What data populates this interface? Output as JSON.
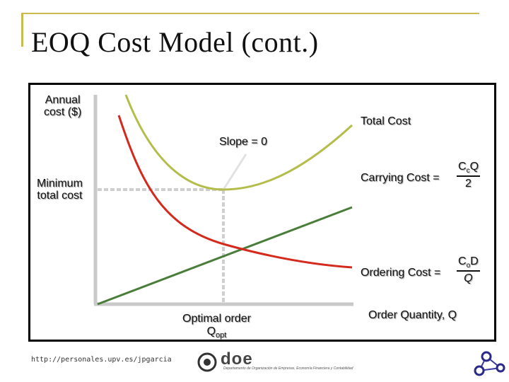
{
  "slide": {
    "title": "EOQ Cost Model (cont.)",
    "url": "http://personales.upv.es/jpgarcia"
  },
  "diagram": {
    "y_axis_label_line1": "Annual",
    "y_axis_label_line2": "cost ($)",
    "x_axis_label": "Order Quantity, Q",
    "total_cost_label": "Total Cost",
    "slope_label": "Slope = 0",
    "minimum_label_line1": "Minimum",
    "minimum_label_line2": "total cost",
    "carrying_cost_label": "Carrying Cost =",
    "carrying_formula": {
      "numerator_base": "C",
      "numerator_sub": "c",
      "numerator_tail": "Q",
      "denominator": "2"
    },
    "ordering_cost_label": "Ordering Cost =",
    "ordering_formula": {
      "numerator_base": "C",
      "numerator_sub": "o",
      "numerator_tail": "D",
      "denominator": "Q"
    },
    "optimal_label_line1": "Optimal order",
    "optimal_label_line2_base": "Q",
    "optimal_label_line2_sub": "opt",
    "colors": {
      "total_cost": "#b5bd4a",
      "ordering_cost": "#d42a1e",
      "carrying_cost": "#4a7d3a",
      "guide": "#cfcfcf",
      "axis": "#c9c9c9"
    }
  },
  "logo": {
    "text": "doe",
    "caption": "Departamento de Organización de Empresas, Economía Financiera y Contabilidad"
  }
}
